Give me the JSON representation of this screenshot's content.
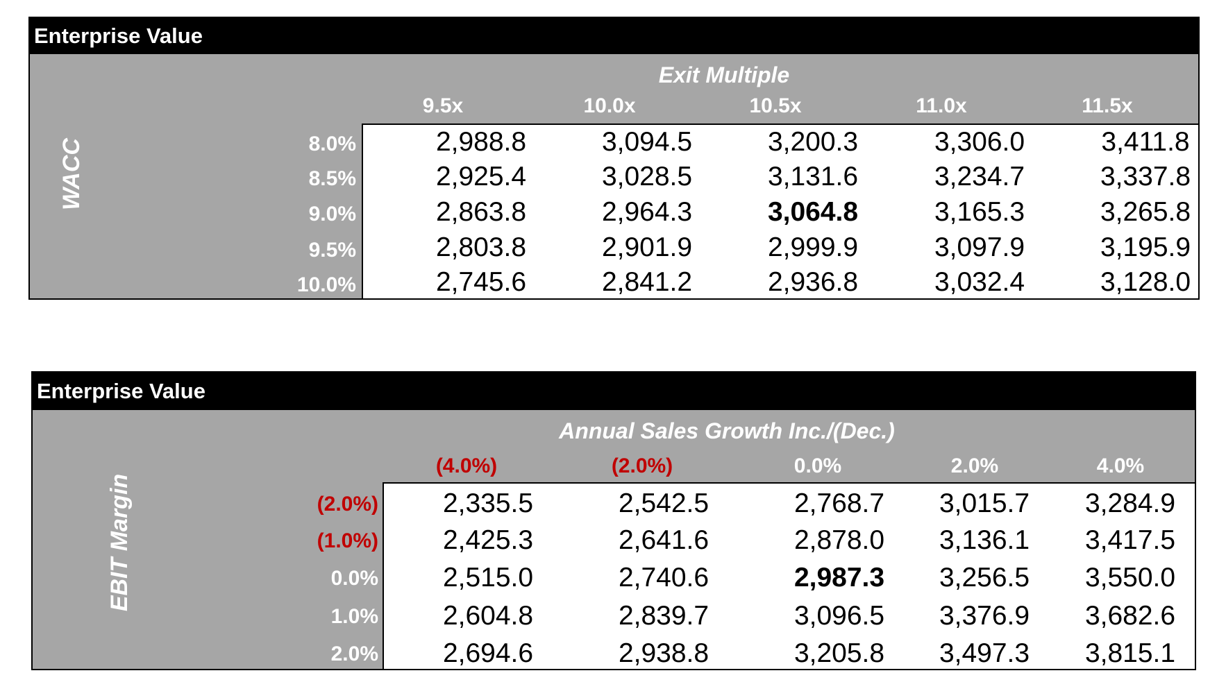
{
  "tables": [
    {
      "title": "Enterprise Value",
      "col_axis_title": "Exit Multiple",
      "row_axis_title": "WACC",
      "columns": [
        "9.5x",
        "10.0x",
        "10.5x",
        "11.0x",
        "11.5x"
      ],
      "rows": [
        {
          "label": "8.0%",
          "values": [
            "2,988.8",
            "3,094.5",
            "3,200.3",
            "3,306.0",
            "3,411.8"
          ]
        },
        {
          "label": "8.5%",
          "values": [
            "2,925.4",
            "3,028.5",
            "3,131.6",
            "3,234.7",
            "3,337.8"
          ]
        },
        {
          "label": "9.0%",
          "values": [
            "2,863.8",
            "2,964.3",
            "3,064.8",
            "3,165.3",
            "3,265.8"
          ]
        },
        {
          "label": "9.5%",
          "values": [
            "2,803.8",
            "2,901.9",
            "2,999.9",
            "3,097.9",
            "3,195.9"
          ]
        },
        {
          "label": "10.0%",
          "values": [
            "2,745.6",
            "2,841.2",
            "2,936.8",
            "3,032.4",
            "3,128.0"
          ]
        }
      ],
      "highlight": {
        "row": 2,
        "col": 2
      }
    },
    {
      "title": "Enterprise Value",
      "col_axis_title": "Annual Sales Growth Inc./(Dec.)",
      "row_axis_title": "EBIT Margin",
      "columns": [
        "(4.0%)",
        "(2.0%)",
        "0.0%",
        "2.0%",
        "4.0%"
      ],
      "rows": [
        {
          "label": "(2.0%)",
          "values": [
            "2,335.5",
            "2,542.5",
            "2,768.7",
            "3,015.7",
            "3,284.9"
          ]
        },
        {
          "label": "(1.0%)",
          "values": [
            "2,425.3",
            "2,641.6",
            "2,878.0",
            "3,136.1",
            "3,417.5"
          ]
        },
        {
          "label": "0.0%",
          "values": [
            "2,515.0",
            "2,740.6",
            "2,987.3",
            "3,256.5",
            "3,550.0"
          ]
        },
        {
          "label": "1.0%",
          "values": [
            "2,604.8",
            "2,839.7",
            "3,096.5",
            "3,376.9",
            "3,682.6"
          ]
        },
        {
          "label": "2.0%",
          "values": [
            "2,694.6",
            "2,938.8",
            "3,205.8",
            "3,497.3",
            "3,815.1"
          ]
        }
      ],
      "highlight": {
        "row": 2,
        "col": 2
      },
      "negative_color": "#c00000"
    }
  ]
}
